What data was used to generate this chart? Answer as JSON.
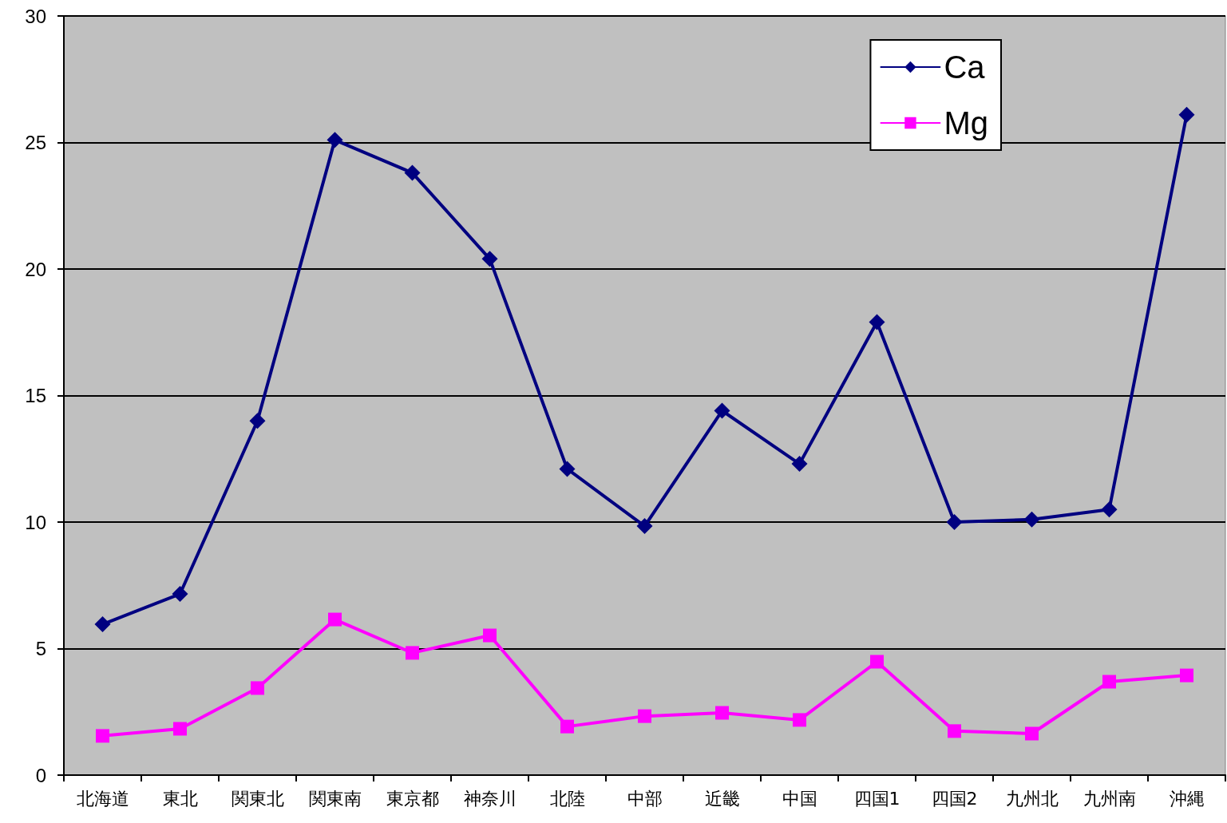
{
  "chart_data": {
    "type": "line",
    "categories": [
      "北海道",
      "東北",
      "関東北",
      "関東南",
      "東京都",
      "神奈川",
      "北陸",
      "中部",
      "近畿",
      "中国",
      "四国1",
      "四国2",
      "九州北",
      "九州南",
      "沖縄"
    ],
    "series": [
      {
        "name": "Ca",
        "color": "#000080",
        "marker": "diamond",
        "values": [
          5.96,
          7.16,
          14.0,
          25.1,
          23.8,
          20.4,
          12.1,
          9.84,
          14.4,
          12.3,
          17.9,
          10.0,
          10.1,
          10.5,
          26.1
        ]
      },
      {
        "name": "Mg",
        "color": "#ff00ff",
        "marker": "square",
        "values": [
          1.55,
          1.83,
          3.44,
          6.15,
          4.83,
          5.52,
          1.92,
          2.33,
          2.46,
          2.18,
          4.48,
          1.74,
          1.64,
          3.69,
          3.94
        ]
      }
    ],
    "ylim": [
      0,
      30
    ],
    "yticks": [
      0,
      5,
      10,
      15,
      20,
      25,
      30
    ],
    "grid": "y",
    "legend": "top right",
    "line_style": "solid"
  }
}
